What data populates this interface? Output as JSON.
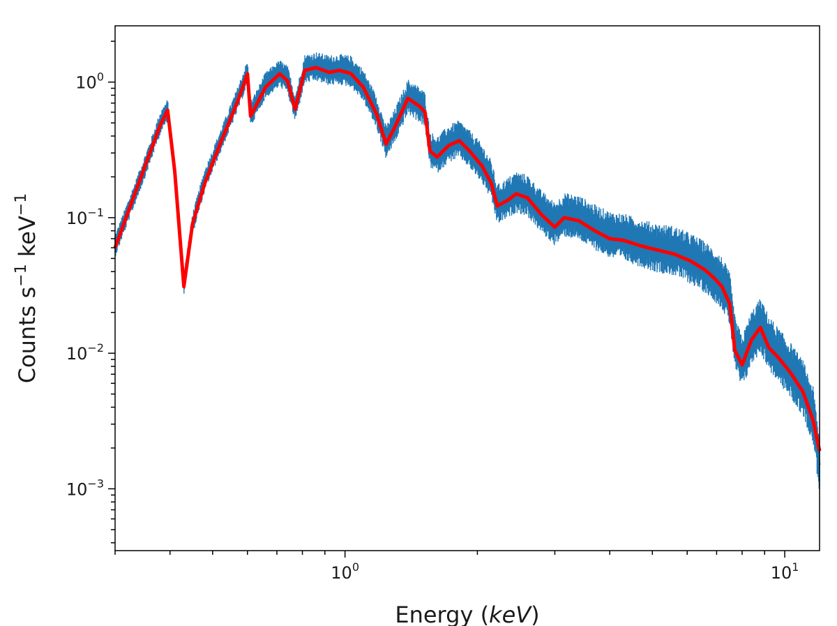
{
  "chart_data": {
    "type": "line",
    "xscale": "log",
    "yscale": "log",
    "xlim": [
      0.3,
      12
    ],
    "ylim": [
      0.00035,
      2.6
    ],
    "xlabel": {
      "prefix": "Energy (",
      "var": "keV",
      "suffix": ")"
    },
    "ylabel": {
      "a": "Counts s",
      "b": "−1",
      "c": " keV",
      "d": "−1"
    },
    "xticks": [
      {
        "value": 1,
        "base": "10",
        "exp": "0"
      },
      {
        "value": 10,
        "base": "10",
        "exp": "1"
      }
    ],
    "yticks": [
      {
        "value": 1,
        "base": "10",
        "exp": "0"
      },
      {
        "value": 0.1,
        "base": "10",
        "exp": "−1"
      },
      {
        "value": 0.01,
        "base": "10",
        "exp": "−2"
      },
      {
        "value": 0.001,
        "base": "10",
        "exp": "−3"
      }
    ],
    "grid": false,
    "legend": "none",
    "colors": {
      "data": "#1f77b4",
      "model": "#ff0000"
    },
    "series": [
      {
        "role": "observed-counts",
        "x": [
          0.3,
          0.33,
          0.36,
          0.38,
          0.395,
          0.41,
          0.43,
          0.45,
          0.48,
          0.52,
          0.57,
          0.6,
          0.61,
          0.66,
          0.71,
          0.74,
          0.77,
          0.81,
          0.86,
          0.92,
          0.97,
          1.03,
          1.1,
          1.18,
          1.24,
          1.3,
          1.39,
          1.48,
          1.52,
          1.56,
          1.62,
          1.72,
          1.82,
          1.92,
          2.05,
          2.15,
          2.22,
          2.35,
          2.45,
          2.6,
          2.8,
          3.0,
          3.15,
          3.4,
          3.7,
          4.0,
          4.3,
          4.7,
          5.1,
          5.6,
          6.1,
          6.6,
          6.9,
          7.2,
          7.5,
          7.7,
          8.0,
          8.4,
          8.8,
          9.2,
          9.7,
          10.3,
          11.0,
          11.6,
          12.0
        ],
        "y": [
          0.062,
          0.14,
          0.3,
          0.5,
          0.62,
          0.22,
          0.032,
          0.09,
          0.19,
          0.36,
          0.75,
          1.18,
          0.58,
          0.95,
          1.16,
          1.05,
          0.64,
          1.25,
          1.3,
          1.22,
          1.24,
          1.2,
          0.95,
          0.6,
          0.36,
          0.48,
          0.78,
          0.68,
          0.62,
          0.32,
          0.29,
          0.35,
          0.38,
          0.32,
          0.25,
          0.19,
          0.125,
          0.14,
          0.155,
          0.145,
          0.11,
          0.09,
          0.105,
          0.1,
          0.085,
          0.075,
          0.072,
          0.065,
          0.06,
          0.057,
          0.05,
          0.043,
          0.038,
          0.033,
          0.025,
          0.012,
          0.0085,
          0.013,
          0.016,
          0.012,
          0.0095,
          0.0075,
          0.0055,
          0.0035,
          0.0015
        ]
      },
      {
        "role": "model-fit",
        "x": [
          0.3,
          0.33,
          0.36,
          0.38,
          0.395,
          0.41,
          0.43,
          0.45,
          0.48,
          0.52,
          0.57,
          0.6,
          0.61,
          0.66,
          0.71,
          0.74,
          0.77,
          0.81,
          0.86,
          0.92,
          0.97,
          1.03,
          1.1,
          1.18,
          1.24,
          1.3,
          1.39,
          1.48,
          1.52,
          1.56,
          1.62,
          1.72,
          1.82,
          1.92,
          2.05,
          2.15,
          2.22,
          2.35,
          2.45,
          2.6,
          2.8,
          3.0,
          3.15,
          3.4,
          3.7,
          4.0,
          4.3,
          4.7,
          5.1,
          5.6,
          6.1,
          6.6,
          6.9,
          7.2,
          7.5,
          7.7,
          8.0,
          8.4,
          8.8,
          9.2,
          9.7,
          10.3,
          11.0,
          11.6,
          12.0
        ],
        "y": [
          0.06,
          0.14,
          0.3,
          0.48,
          0.62,
          0.22,
          0.031,
          0.09,
          0.18,
          0.35,
          0.72,
          1.15,
          0.56,
          0.92,
          1.15,
          1.02,
          0.63,
          1.22,
          1.28,
          1.18,
          1.22,
          1.16,
          0.92,
          0.58,
          0.35,
          0.47,
          0.76,
          0.66,
          0.6,
          0.31,
          0.28,
          0.34,
          0.37,
          0.31,
          0.24,
          0.18,
          0.122,
          0.135,
          0.15,
          0.14,
          0.105,
          0.085,
          0.1,
          0.095,
          0.08,
          0.07,
          0.068,
          0.062,
          0.058,
          0.054,
          0.048,
          0.041,
          0.036,
          0.031,
          0.023,
          0.0105,
          0.0082,
          0.0125,
          0.0155,
          0.011,
          0.0092,
          0.0072,
          0.0052,
          0.0032,
          0.0019
        ]
      }
    ]
  }
}
